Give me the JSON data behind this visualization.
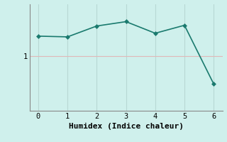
{
  "x": [
    0,
    1,
    2,
    3,
    4,
    5,
    6
  ],
  "y": [
    1.28,
    1.27,
    1.42,
    1.48,
    1.32,
    1.43,
    0.62
  ],
  "xlabel": "Humidex (Indice chaleur)",
  "line_color": "#1a7a6e",
  "marker_color": "#1a7a6e",
  "bg_color": "#cff0ec",
  "grid_color_h": "#e0b8b8",
  "grid_color_v": "#b8d8d4",
  "spine_color": "#888888",
  "xlim": [
    -0.3,
    6.3
  ],
  "ylim": [
    0.25,
    1.72
  ],
  "xticks": [
    0,
    1,
    2,
    3,
    4,
    5,
    6
  ],
  "yticks": [
    1
  ],
  "xlabel_fontsize": 8,
  "tick_fontsize": 7.5,
  "marker_size": 3,
  "line_width": 1.2
}
